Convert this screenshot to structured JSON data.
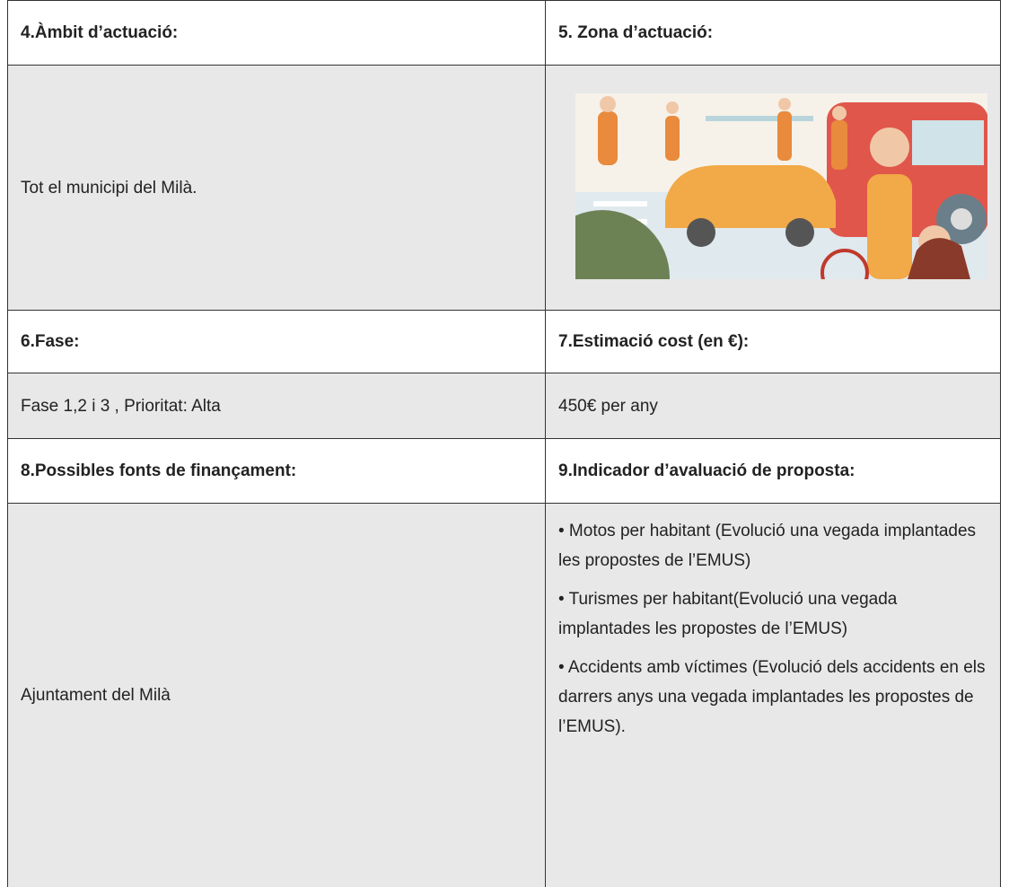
{
  "table": {
    "rows": [
      [
        "4.Àmbit d’actuació:",
        "5. Zona d’actuació:"
      ],
      [
        "Tot el municipi del Milà.",
        null
      ],
      [
        "6.Fase:",
        "7.Estimació cost (en €):"
      ],
      [
        "Fase 1,2 i 3 , Prioritat: Alta",
        "450€ per any"
      ],
      [
        "8.Possibles fonts de finançament:",
        "9.Indicador d’avaluació de proposta:"
      ],
      [
        "Ajuntament del Milà",
        [
          "• Motos per habitant (Evolució una vegada implantades les propostes de l’EMUS)",
          "• Turismes per habitant(Evolució una vegada implantades les propostes de l’EMUS)",
          "• Accidents amb víctimes (Evolució dels accidents en els darrers anys una vegada implantades les propostes de l’EMUS)."
        ]
      ]
    ]
  }
}
